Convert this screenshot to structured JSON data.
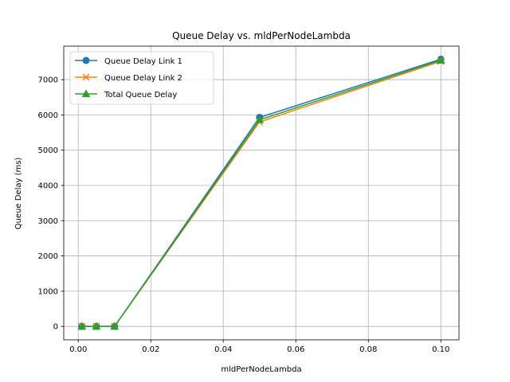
{
  "chart_data": {
    "type": "line",
    "title": "Queue Delay vs. mldPerNodeLambda",
    "xlabel": "mldPerNodeLambda",
    "ylabel": "Queue Delay (ms)",
    "x": [
      0.001,
      0.005,
      0.01,
      0.05,
      0.1
    ],
    "xlim": [
      -0.004,
      0.105
    ],
    "ylim": [
      -380,
      7950
    ],
    "xticks": [
      0.0,
      0.02,
      0.04,
      0.06,
      0.08,
      0.1
    ],
    "xtick_labels": [
      "0.00",
      "0.02",
      "0.04",
      "0.06",
      "0.08",
      "0.10"
    ],
    "yticks": [
      0,
      1000,
      2000,
      3000,
      4000,
      5000,
      6000,
      7000
    ],
    "ytick_labels": [
      "0",
      "1000",
      "2000",
      "3000",
      "4000",
      "5000",
      "6000",
      "7000"
    ],
    "grid": true,
    "legend_position": "top-left",
    "series": [
      {
        "name": "Queue Delay Link 1",
        "values": [
          0,
          0,
          0,
          5930,
          7580
        ],
        "color": "#1f77b4",
        "marker": "circle"
      },
      {
        "name": "Queue Delay Link 2",
        "values": [
          0,
          0,
          0,
          5800,
          7520
        ],
        "color": "#ff7f0e",
        "marker": "x"
      },
      {
        "name": "Total Queue Delay",
        "values": [
          0,
          0,
          0,
          5860,
          7550
        ],
        "color": "#2ca02c",
        "marker": "triangle"
      }
    ]
  }
}
